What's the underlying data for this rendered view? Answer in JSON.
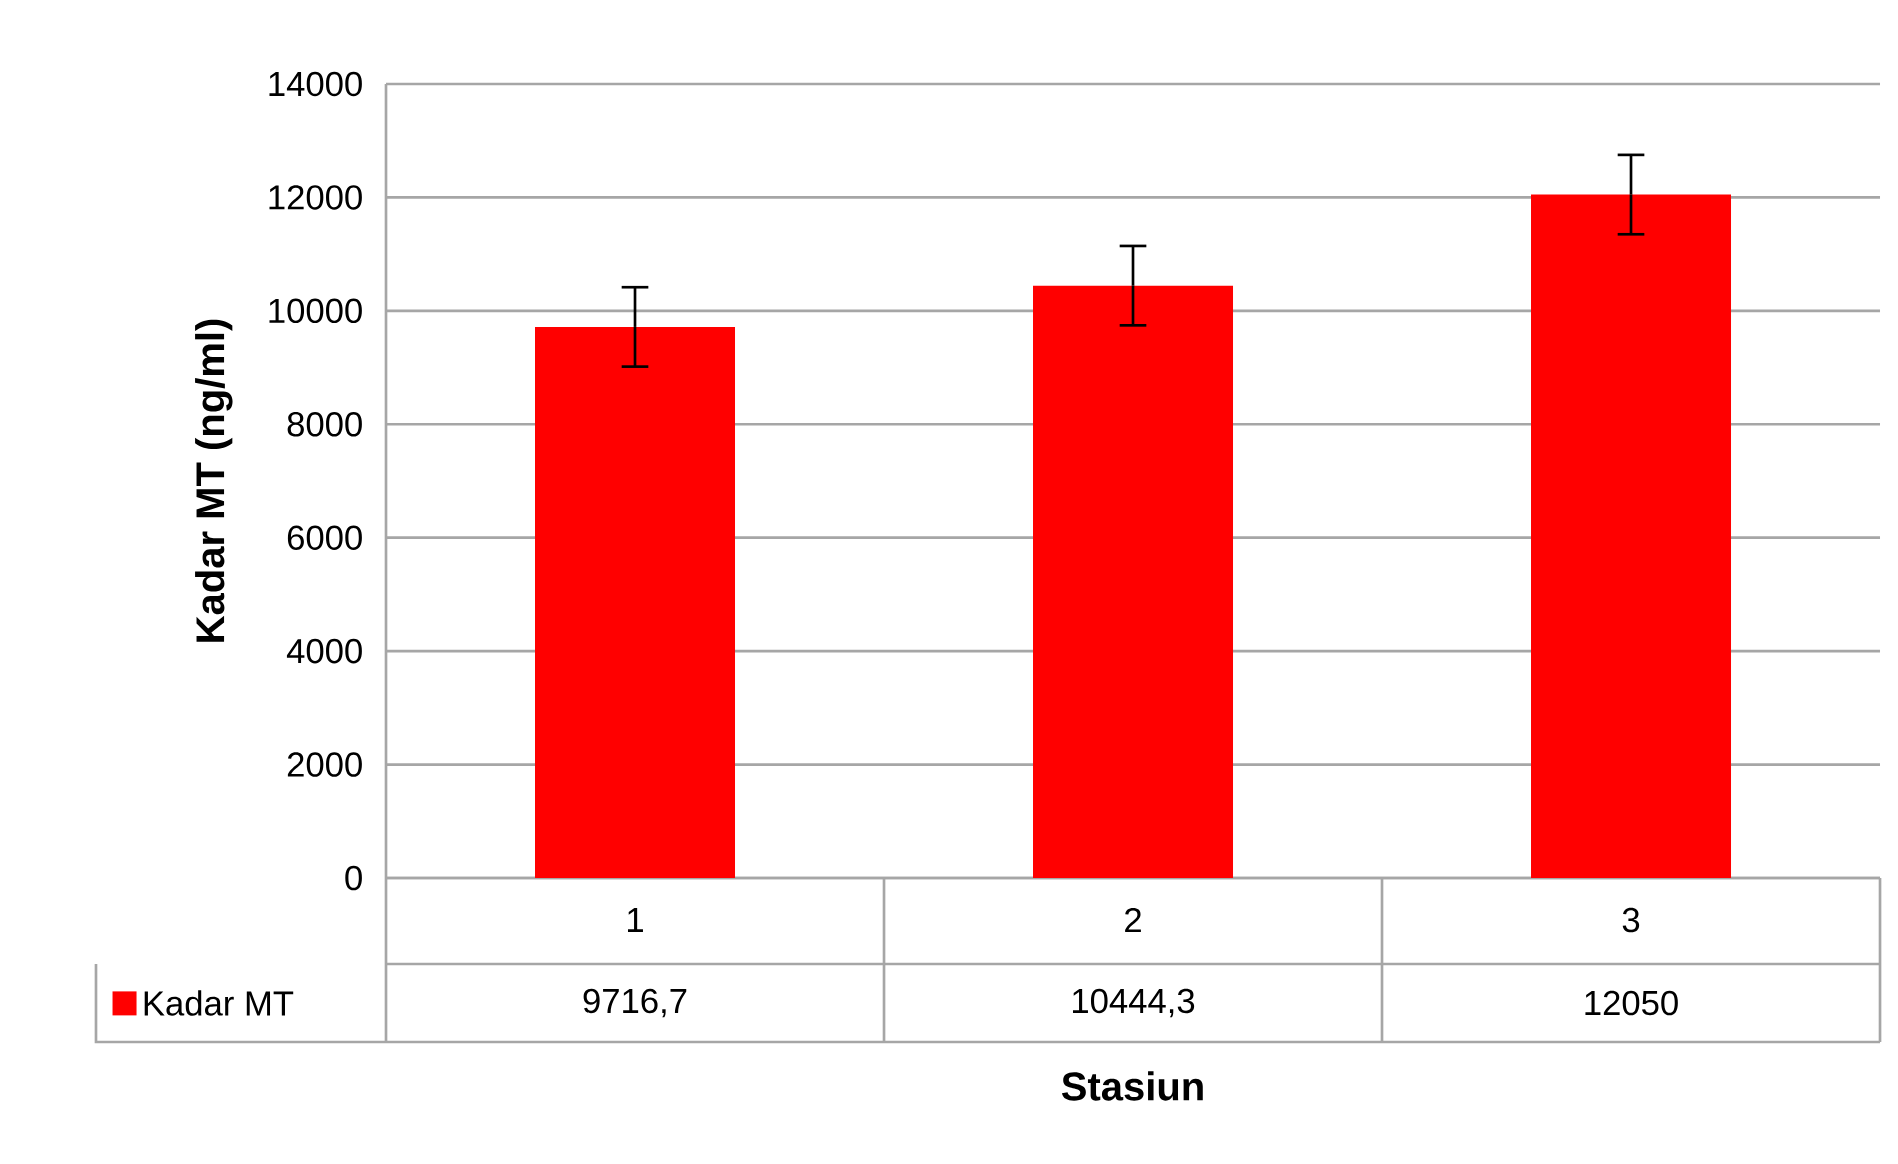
{
  "chart_data": {
    "type": "bar",
    "xlabel": "Stasiun",
    "ylabel": "Kadar MT (ng/ml)",
    "categories": [
      "1",
      "2",
      "3"
    ],
    "series": [
      {
        "name": "Kadar MT",
        "color": "#ff0000",
        "values": [
          9716.7,
          10444.3,
          12050
        ],
        "errors": [
          700,
          700,
          700
        ],
        "value_labels": [
          "9716,7",
          "10444,3",
          "12050"
        ]
      }
    ],
    "ylim": [
      0,
      14000
    ],
    "yticks": [
      0,
      2000,
      4000,
      6000,
      8000,
      10000,
      12000,
      14000
    ],
    "grid": "y",
    "legend": "bottom left"
  }
}
